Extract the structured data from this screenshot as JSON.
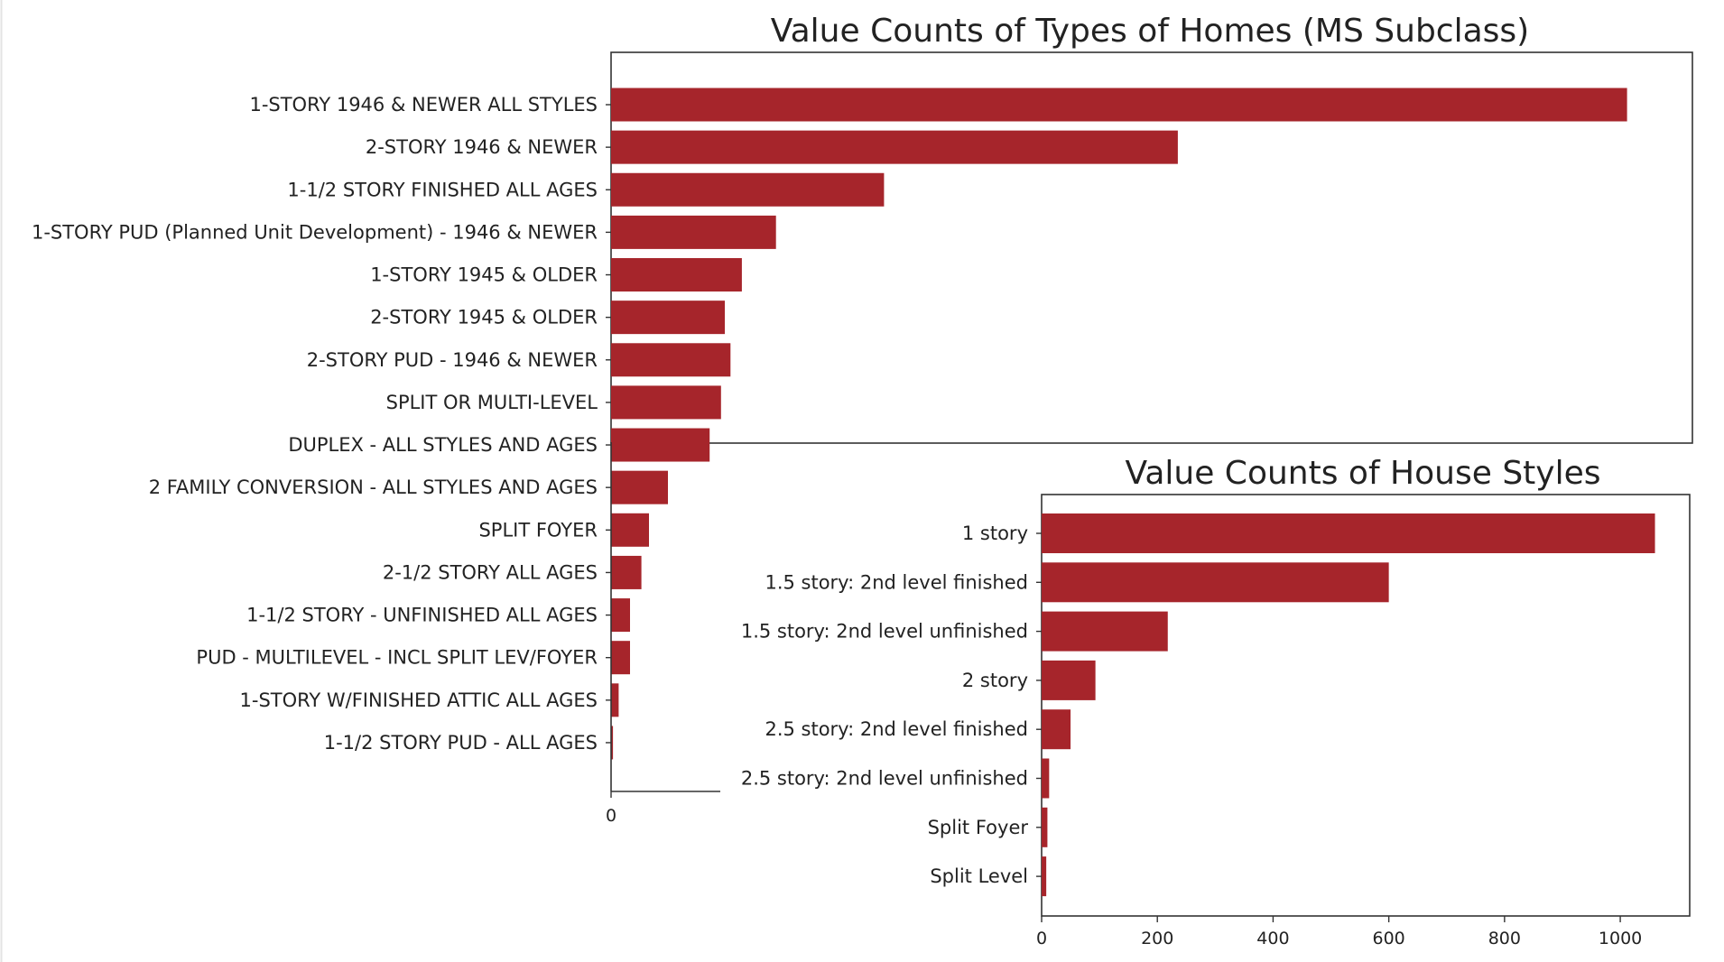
{
  "chart_data": [
    {
      "type": "bar",
      "orientation": "horizontal",
      "title": "Value Counts of Types of Homes (MS Subclass)",
      "categories": [
        "1-STORY 1946 & NEWER ALL STYLES",
        "2-STORY 1946 & NEWER",
        "1-1/2 STORY FINISHED ALL AGES",
        "1-STORY PUD (Planned Unit Development) - 1946 & NEWER",
        "1-STORY 1945 & OLDER",
        "2-STORY 1945 & OLDER",
        "2-STORY PUD - 1946 & NEWER",
        "SPLIT OR MULTI-LEVEL",
        "DUPLEX - ALL STYLES AND AGES",
        "2 FAMILY CONVERSION - ALL STYLES AND AGES",
        "SPLIT FOYER",
        "2-1/2 STORY ALL AGES",
        "1-1/2 STORY - UNFINISHED ALL AGES",
        "PUD - MULTILEVEL - INCL SPLIT LEV/FOYER",
        "1-STORY W/FINISHED ATTIC ALL AGES",
        "1-1/2 STORY PUD - ALL AGES"
      ],
      "values": [
        536,
        299,
        144,
        87,
        69,
        60,
        63,
        58,
        52,
        30,
        20,
        16,
        10,
        10,
        4,
        1
      ],
      "xticks": [
        "0"
      ],
      "bar_color": "#A6252B",
      "partially_occluded_by": "Value Counts of House Styles"
    },
    {
      "type": "bar",
      "orientation": "horizontal",
      "title": "Value Counts of House Styles",
      "categories": [
        "1 story",
        "1.5 story: 2nd level finished",
        "1.5 story: 2nd level unfinished",
        "2 story",
        "2.5 story: 2nd level finished",
        "2.5 story: 2nd level unfinished",
        "Split Foyer",
        "Split Level"
      ],
      "values": [
        1060,
        600,
        218,
        93,
        50,
        13,
        10,
        8
      ],
      "xlim": [
        0,
        1120
      ],
      "xticks": [
        "0",
        "200",
        "400",
        "600",
        "800",
        "1000"
      ],
      "bar_color": "#A6252B"
    }
  ]
}
